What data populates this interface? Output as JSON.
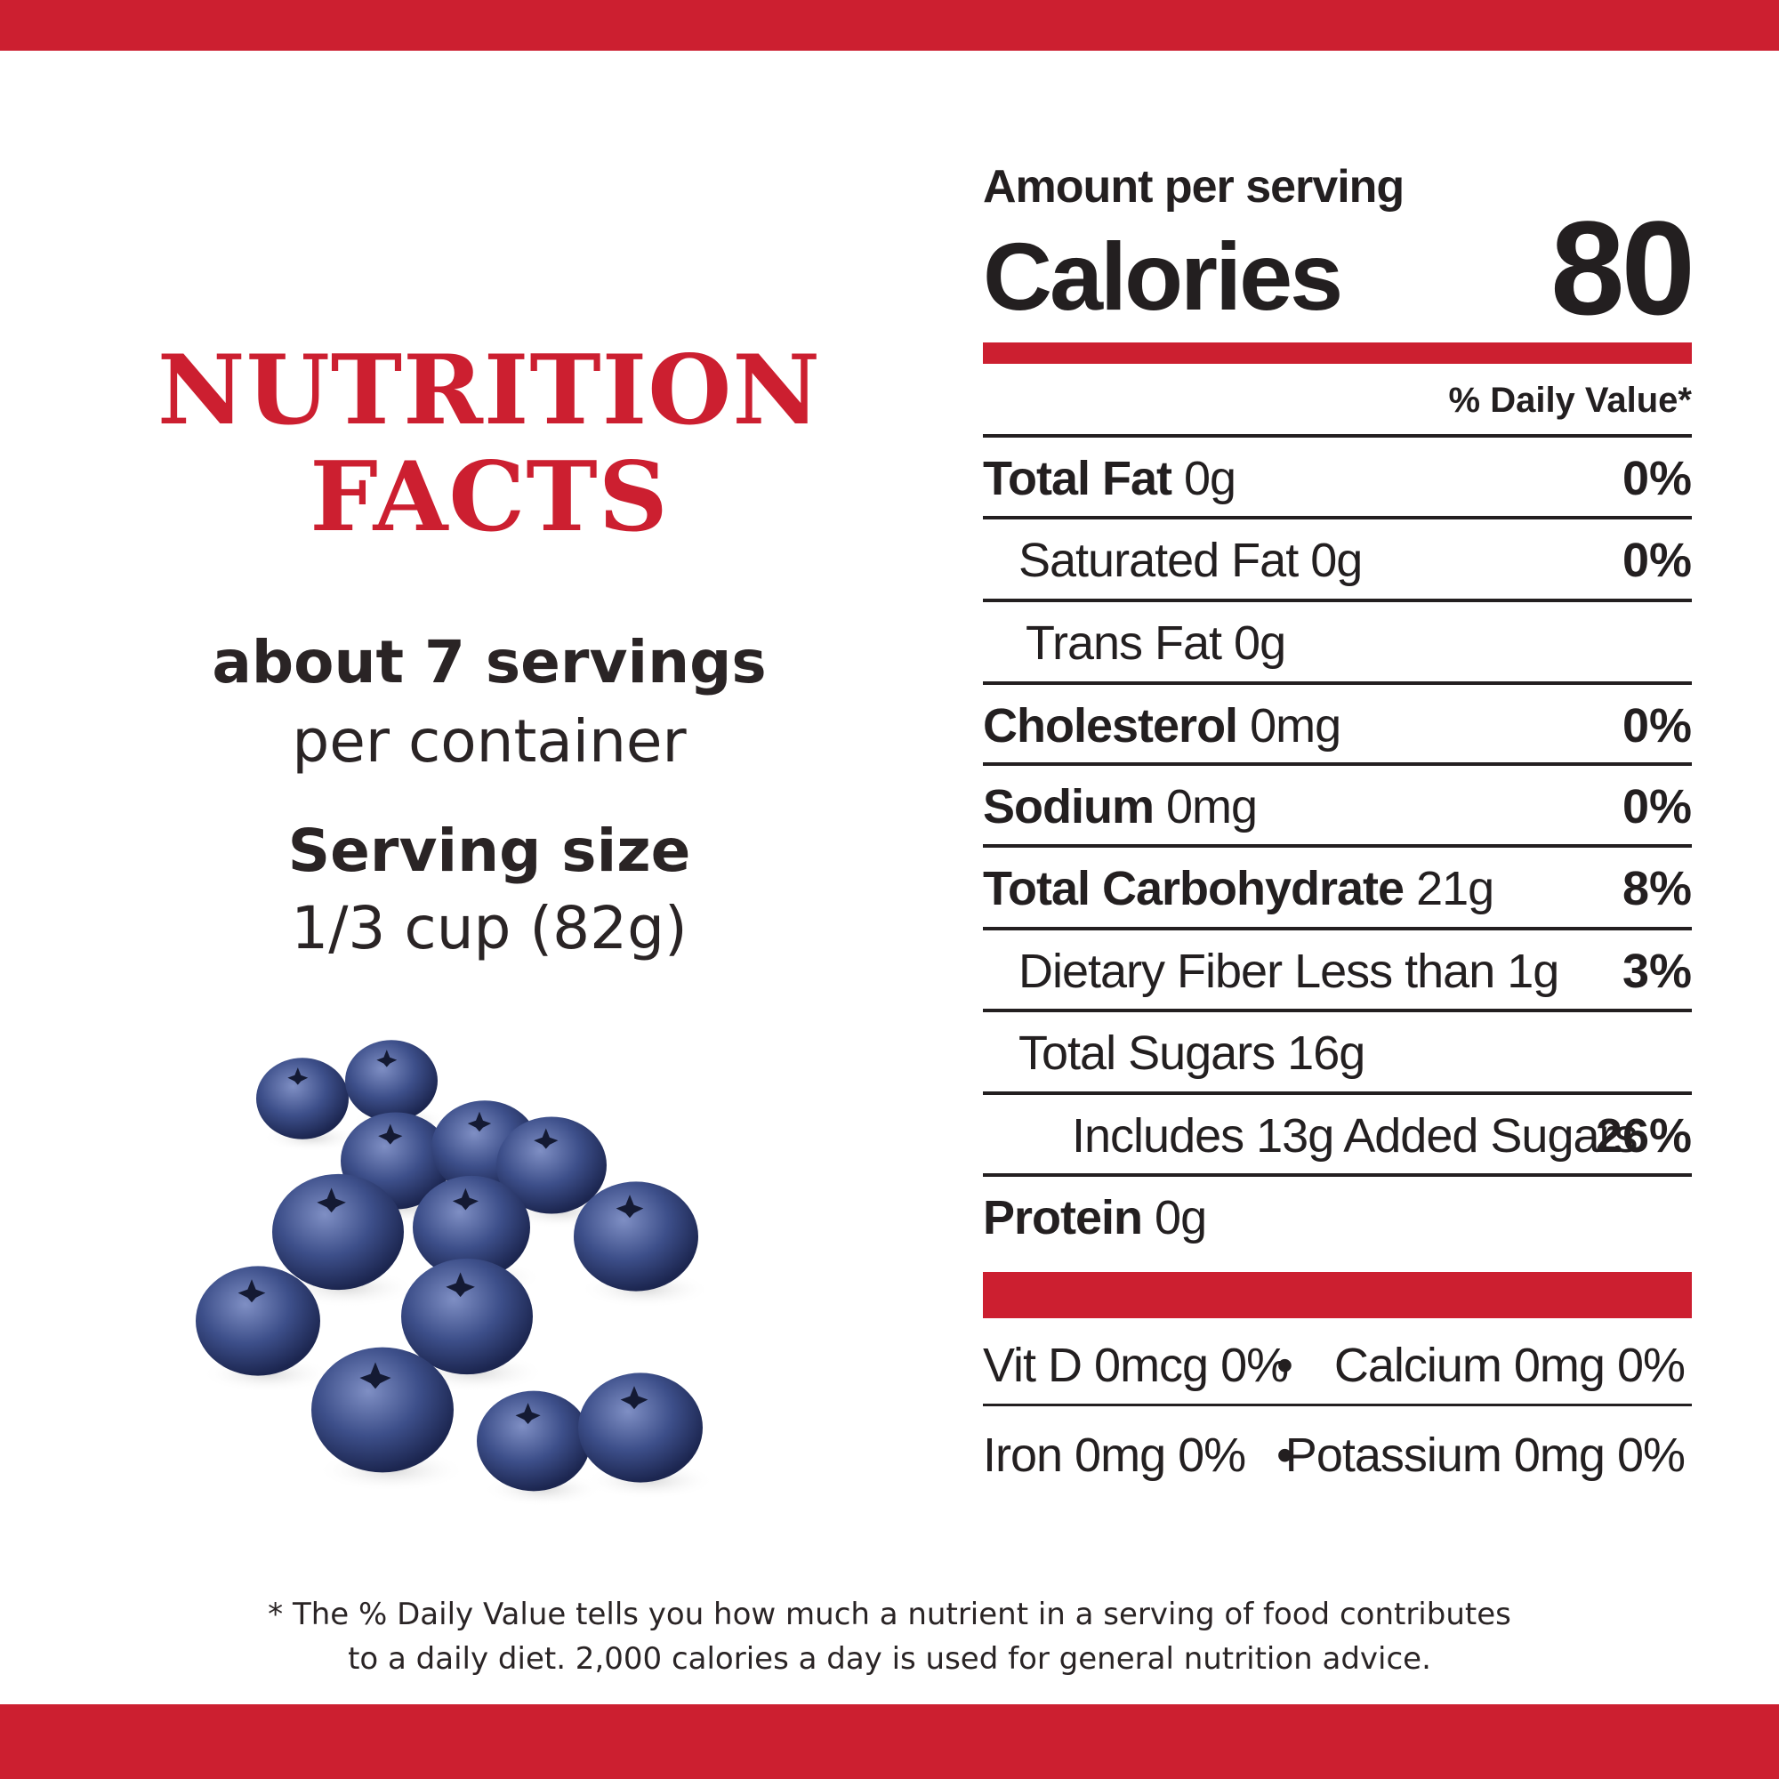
{
  "colors": {
    "brand_red": "#cc1f30",
    "text": "#231f20"
  },
  "left": {
    "title_line1": "NUTRITION",
    "title_line2": "FACTS",
    "servings_count": "about 7 servings",
    "servings_unit": "per container",
    "serving_size_label": "Serving size",
    "serving_size_value": "1/3 cup (82g)",
    "image": "blueberries"
  },
  "panel": {
    "amount_label": "Amount per serving",
    "calories_label": "Calories",
    "calories_value": "80",
    "dv_header": "% Daily Value*",
    "rows": [
      {
        "bold": "Total Fat",
        "text": " 0g",
        "pct": "0%"
      },
      {
        "bold": "",
        "text": "Saturated Fat 0g",
        "pct": "0%"
      },
      {
        "bold": "",
        "text": "Trans Fat 0g",
        "pct": ""
      },
      {
        "bold": "Cholesterol",
        "text": " 0mg",
        "pct": "0%"
      },
      {
        "bold": "Sodium",
        "text": " 0mg",
        "pct": "0%"
      },
      {
        "bold": "Total Carbohydrate",
        "text": " 21g",
        "pct": "8%"
      },
      {
        "bold": "",
        "text": "Dietary Fiber Less than 1g",
        "pct": "3%"
      },
      {
        "bold": "",
        "text": "Total Sugars 16g",
        "pct": ""
      },
      {
        "bold": "",
        "text": "Includes 13g Added Sugars",
        "pct": "26%"
      },
      {
        "bold": "Protein",
        "text": " 0g",
        "pct": ""
      }
    ],
    "vitamins": [
      {
        "left": "Vit D 0mcg 0%",
        "right": "Calcium 0mg 0%"
      },
      {
        "left": "Iron 0mg 0%",
        "right": "Potassium 0mg 0%"
      }
    ],
    "bullet": "•"
  },
  "footnote": {
    "line1": "* The % Daily Value tells you how much a nutrient in a serving of food contributes",
    "line2": "to a daily diet. 2,000 calories a day is used for general nutrition advice."
  }
}
